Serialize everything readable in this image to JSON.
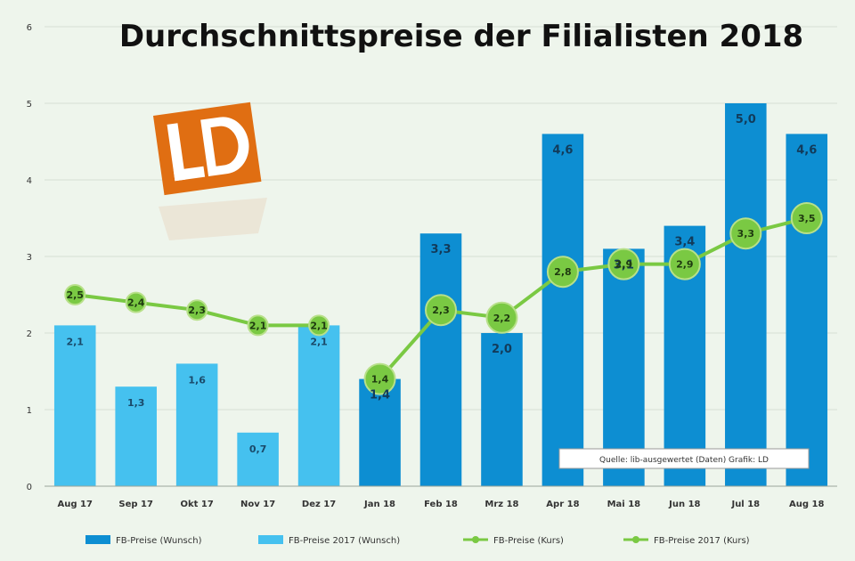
{
  "chart_data": {
    "type": "bar",
    "title": "Durchschnittspreise der Filialisten 2018",
    "categories": [
      "Aug 17",
      "Sep 17",
      "Okt 17",
      "Nov 17",
      "Dez 17",
      "Jan 18",
      "Feb 18",
      "Mrz 18",
      "Apr 18",
      "Mai 18",
      "Jun 18",
      "Jul 18",
      "Aug 18"
    ],
    "ylim": [
      0,
      6
    ],
    "yticks": [
      "0",
      "1",
      "2",
      "3",
      "4",
      "5",
      "6"
    ],
    "grid": true,
    "legend_position": "bottom",
    "series": [
      {
        "name": "FB-Preise (Wunsch)",
        "kind": "bar",
        "color": "#0d8ed2",
        "values": [
          null,
          null,
          null,
          null,
          null,
          1.4,
          3.3,
          2.0,
          4.6,
          3.1,
          3.4,
          5.0,
          4.6
        ],
        "labels": [
          null,
          null,
          null,
          null,
          null,
          "1,4",
          "3,3",
          "2,0",
          "4,6",
          "3,1",
          "3,4",
          "5,0",
          "4,6"
        ]
      },
      {
        "name": "FB-Preise 2017 (Wunsch)",
        "kind": "bar",
        "color": "#45c1ef",
        "values": [
          2.1,
          1.3,
          1.6,
          0.7,
          2.1,
          null,
          null,
          null,
          null,
          null,
          null,
          null,
          null
        ],
        "labels": [
          "2,1",
          "1,3",
          "1,6",
          "0,7",
          "2,1",
          null,
          null,
          null,
          null,
          null,
          null,
          null,
          null
        ]
      },
      {
        "name": "FB-Preise (Kurs)",
        "kind": "line",
        "color": "#7ac943",
        "values": [
          null,
          null,
          null,
          null,
          null,
          1.4,
          2.3,
          2.2,
          2.8,
          2.9,
          2.9,
          3.3,
          3.5
        ],
        "labels": [
          null,
          null,
          null,
          null,
          null,
          "1,4",
          "2,3",
          "2,2",
          "2,8",
          "2,9",
          "2,9",
          "3,3",
          "3,5"
        ]
      },
      {
        "name": "FB-Preise 2017 (Kurs)",
        "kind": "line",
        "color": "#7ac943",
        "values": [
          2.5,
          2.4,
          2.3,
          2.1,
          2.1,
          null,
          null,
          null,
          null,
          null,
          null,
          null,
          null
        ],
        "labels": [
          "2,5",
          "2,4",
          "2,3",
          "2,1",
          "2,1",
          null,
          null,
          null,
          null,
          null,
          null,
          null,
          null
        ]
      }
    ],
    "source_note": "Quelle: lib-ausgewertet (Daten) Grafik: LD"
  },
  "colors": {
    "background": "#eef5ec",
    "grid": "#d6dfd4",
    "logo_orange": "#e06e12"
  },
  "logo": {
    "text": "LD"
  }
}
